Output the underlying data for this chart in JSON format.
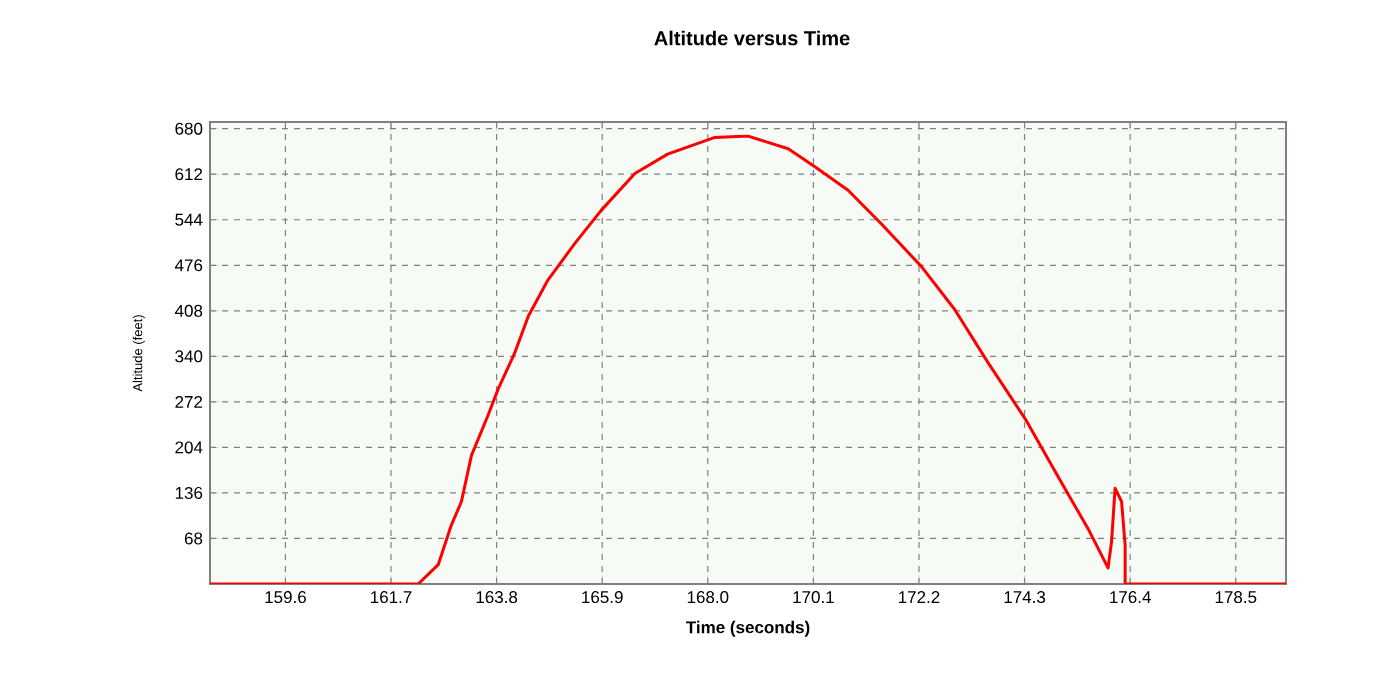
{
  "chart_data": {
    "type": "line",
    "title": "Altitude versus Time",
    "xlabel": "Time (seconds)",
    "ylabel": "Altitude (feet)",
    "x": [
      158.1,
      162.24,
      162.64,
      162.9,
      163.1,
      163.3,
      163.63,
      163.83,
      164.16,
      164.43,
      164.82,
      165.36,
      165.88,
      166.55,
      167.2,
      168.14,
      168.8,
      169.6,
      170.13,
      170.79,
      171.45,
      172.25,
      172.91,
      173.57,
      174.31,
      175.03,
      175.56,
      175.96,
      176.03,
      176.1,
      176.23,
      176.3,
      176.3,
      179.5
    ],
    "series": [
      {
        "color": "#ff0000",
        "values": [
          0,
          0,
          29,
          88,
          123,
          192,
          252,
          291,
          345,
          400,
          454,
          509,
          558,
          613,
          642,
          667,
          669,
          650,
          623,
          588,
          538,
          474,
          410,
          331,
          247,
          152,
          83,
          24,
          63,
          143,
          123,
          58,
          0,
          0
        ]
      }
    ],
    "xlim": [
      158.1,
      179.5
    ],
    "ylim": [
      0,
      690
    ],
    "xticks": [
      159.6,
      161.7,
      163.8,
      165.9,
      {
        "value": 168,
        "label": "168.0"
      },
      170.1,
      172.2,
      174.3,
      176.4,
      178.5
    ],
    "yticks": [
      68,
      136,
      204,
      272,
      340,
      408,
      476,
      544,
      612,
      680
    ],
    "grid": true,
    "marker": "none",
    "line_style": "solid"
  }
}
